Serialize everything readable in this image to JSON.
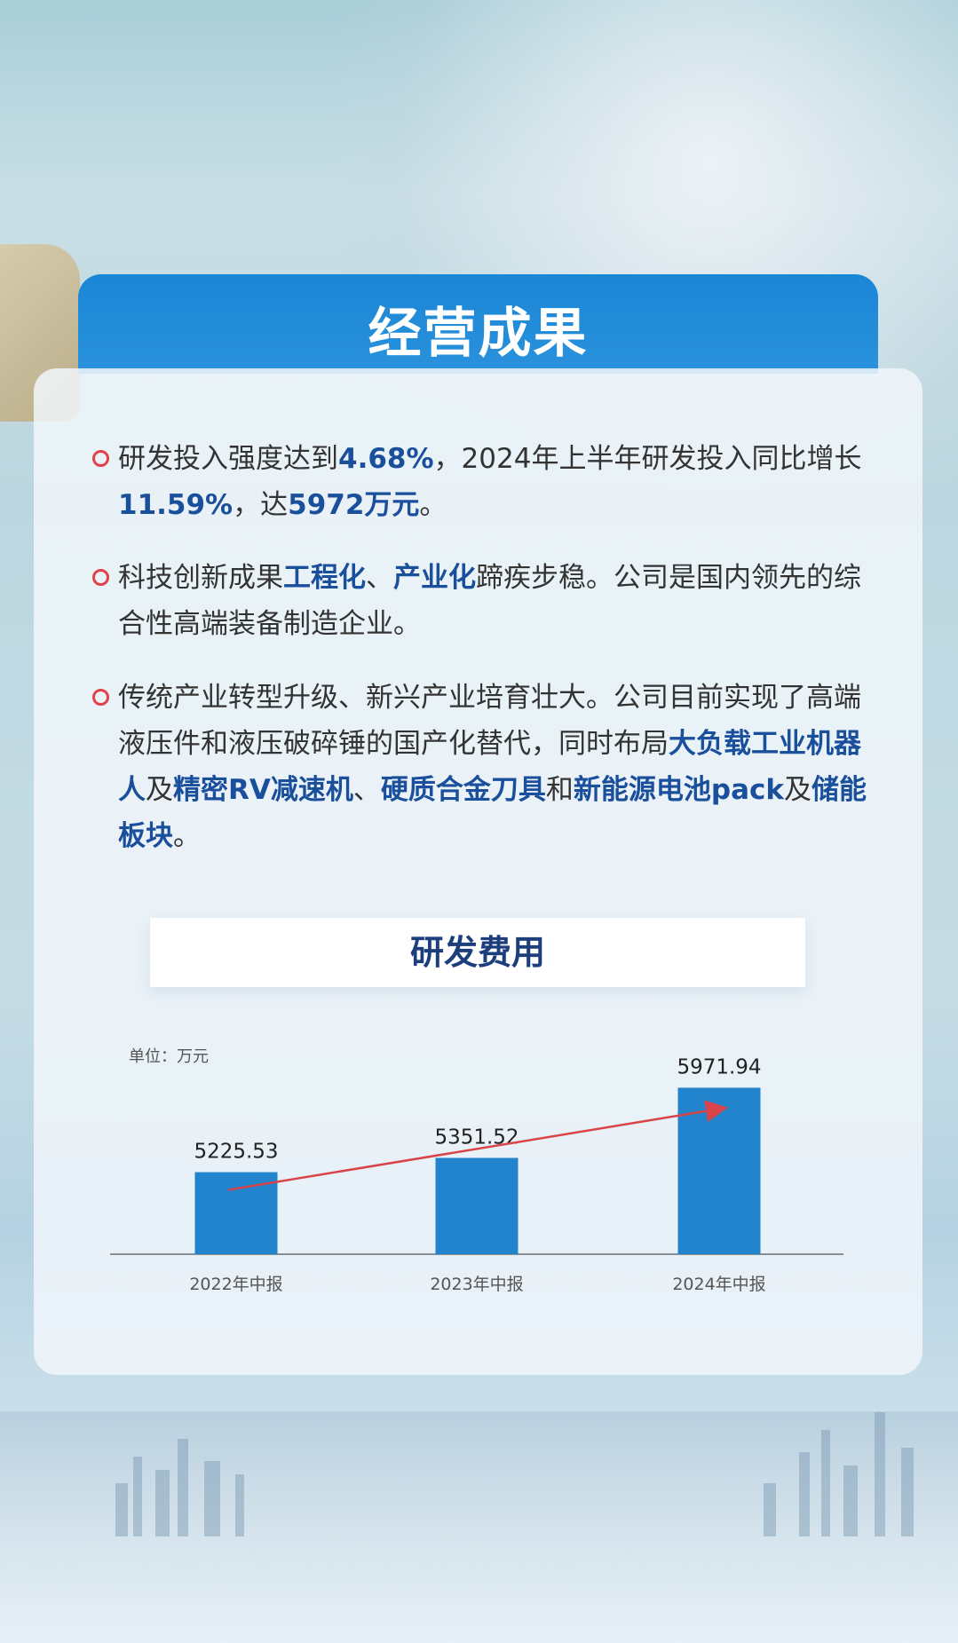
{
  "header": {
    "title": "经营成果"
  },
  "bullets": [
    {
      "parts": [
        {
          "t": "研发投入强度达到"
        },
        {
          "t": "4.68%",
          "hl": true
        },
        {
          "t": "，2024年上半年研发投入同比增长"
        },
        {
          "t": "11.59%",
          "hl": true
        },
        {
          "t": "，达"
        },
        {
          "t": "5972万元",
          "hl": true
        },
        {
          "t": "。"
        }
      ]
    },
    {
      "parts": [
        {
          "t": "科技创新成果"
        },
        {
          "t": "工程化",
          "hl": true
        },
        {
          "t": "、"
        },
        {
          "t": "产业化",
          "hl": true
        },
        {
          "t": "蹄疾步稳。公司是国内领先的综合性高端装备制造企业。"
        }
      ]
    },
    {
      "parts": [
        {
          "t": "传统产业转型升级、新兴产业培育壮大。公司目前实现了高端液压件和液压破碎锤的国产化替代，同时布局"
        },
        {
          "t": "大负载工业机器人",
          "hl": true
        },
        {
          "t": "及"
        },
        {
          "t": "精密RV减速机",
          "hl": true
        },
        {
          "t": "、"
        },
        {
          "t": "硬质合金刀具",
          "hl": true
        },
        {
          "t": "和"
        },
        {
          "t": "新能源电池pack",
          "hl": true
        },
        {
          "t": "及"
        },
        {
          "t": "储能板块",
          "hl": true
        },
        {
          "t": "。"
        }
      ]
    }
  ],
  "colors": {
    "bar": "#2284cc",
    "header": "#1a86d6",
    "highlight": "#1a4f9c",
    "bullet": "#e0414a",
    "trend_arrow": "#d9434a"
  },
  "chart_data": {
    "type": "bar",
    "title": "研发费用",
    "unit_label": "单位：万元",
    "categories": [
      "2022年中报",
      "2023年中报",
      "2024年中报"
    ],
    "values": [
      5225.53,
      5351.52,
      5971.94
    ],
    "data_labels": [
      "5225.53",
      "5351.52",
      "5971.94"
    ],
    "ylim": [
      4500,
      6250
    ],
    "grid": false,
    "annotations": [
      {
        "type": "trend-arrow",
        "from": "2022年中报",
        "to": "2024年中报"
      }
    ]
  }
}
